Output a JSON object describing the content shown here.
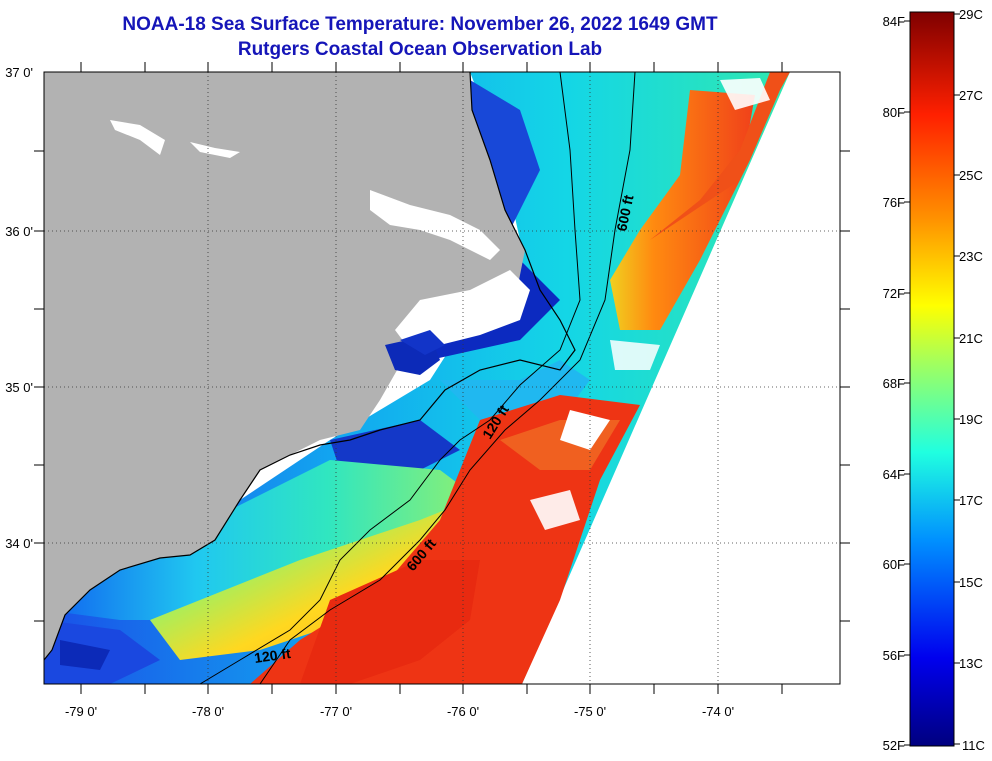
{
  "header": {
    "title": "NOAA-18 Sea Surface Temperature:  November 26, 2022 1649 GMT",
    "subtitle": "Rutgers Coastal Ocean Observation Lab"
  },
  "map": {
    "lat_labels": [
      "37 0'",
      "36 0'",
      "35 0'",
      "34 0'"
    ],
    "lon_labels": [
      "-79 0'",
      "-78 0'",
      "-77 0'",
      "-76 0'",
      "-75 0'",
      "-74 0'"
    ],
    "contours": [
      {
        "label": "600 ft",
        "name": "contour-label-600ft-north"
      },
      {
        "label": "120 ft",
        "name": "contour-label-120ft-middle"
      },
      {
        "label": "600 ft",
        "name": "contour-label-600ft-south"
      },
      {
        "label": "120 ft",
        "name": "contour-label-120ft-south"
      }
    ]
  },
  "colorbar": {
    "fahrenheit": [
      "84F",
      "80F",
      "76F",
      "72F",
      "68F",
      "64F",
      "60F",
      "56F",
      "52F"
    ],
    "celsius": [
      "29C",
      "27C",
      "25C",
      "23C",
      "21C",
      "19C",
      "17C",
      "15C",
      "13C",
      "11C"
    ]
  },
  "colors": {
    "land": "#b2b2b2",
    "title": "#1515b8",
    "warm": "#ee2a10",
    "cold": "#0a1ab4"
  }
}
